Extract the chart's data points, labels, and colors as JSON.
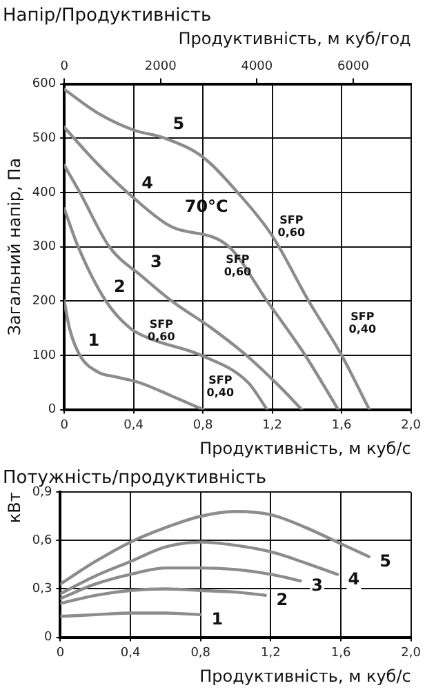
{
  "chart_data": [
    {
      "type": "line",
      "title": "Напір/Продуктивність",
      "xlabel": "Продуктивність, м куб/с",
      "ylabel": "Загальний напір, Па",
      "x2label": "Продуктивність, м куб/год",
      "xlim": [
        0,
        2.0
      ],
      "xticks": [
        0,
        {
          "value": 0.4,
          "label": "0,4"
        },
        {
          "value": 0.8,
          "label": "0,8"
        },
        {
          "value": 1.2,
          "label": "1,2"
        },
        {
          "value": 1.6,
          "label": "1,6"
        },
        {
          "value": 2.0,
          "label": "2,0"
        }
      ],
      "x2lim": [
        0,
        7200
      ],
      "x2ticks": [
        0,
        2000,
        4000,
        6000
      ],
      "ylim": [
        0,
        600
      ],
      "yticks": [
        0,
        100,
        200,
        300,
        400,
        500,
        600
      ],
      "grid": true,
      "legend": false,
      "marker": "none",
      "line_style": "solid",
      "series": [
        {
          "name": "1",
          "color": "#8c8c8c",
          "x": [
            0,
            0.03,
            0.09,
            0.19,
            0.3,
            0.43,
            0.62,
            0.8
          ],
          "values": [
            200,
            150,
            100,
            70,
            60,
            50,
            25,
            0
          ]
        },
        {
          "name": "2",
          "color": "#8c8c8c",
          "x": [
            0,
            0.08,
            0.24,
            0.38,
            0.5,
            0.79,
            1.06,
            1.17
          ],
          "values": [
            370,
            300,
            200,
            150,
            130,
            100,
            50,
            0
          ]
        },
        {
          "name": "3",
          "color": "#8c8c8c",
          "x": [
            0,
            0.09,
            0.26,
            0.45,
            0.62,
            0.85,
            1.05,
            1.25,
            1.37
          ],
          "values": [
            450,
            400,
            300,
            245,
            200,
            150,
            100,
            40,
            0
          ]
        },
        {
          "name": "4",
          "color": "#8c8c8c",
          "x": [
            0,
            0.2,
            0.4,
            0.6,
            0.95,
            1.17,
            1.39,
            1.58
          ],
          "values": [
            520,
            450,
            390,
            340,
            300,
            200,
            100,
            0
          ]
        },
        {
          "name": "5",
          "color": "#8c8c8c",
          "x": [
            0,
            0.2,
            0.4,
            0.58,
            0.8,
            1.0,
            1.2,
            1.41,
            1.6,
            1.76
          ],
          "values": [
            590,
            545,
            515,
            500,
            465,
            400,
            320,
            200,
            100,
            0
          ]
        }
      ],
      "annotations": [
        "70°C",
        "SFP\n0,60",
        "SFP\n0,60",
        "SFP\n0,40",
        "SFP\n0,60",
        "SFP\n0,40"
      ]
    },
    {
      "type": "line",
      "title": "Потужність/продуктивність",
      "xlabel": "Продуктивність, м куб/с",
      "ylabel": "кВт",
      "xlim": [
        0,
        2.0
      ],
      "xticks": [
        0,
        {
          "value": 0.4,
          "label": "0,4"
        },
        {
          "value": 0.8,
          "label": "0,8"
        },
        {
          "value": 1.2,
          "label": "1,2"
        },
        {
          "value": 1.6,
          "label": "1,6"
        },
        {
          "value": 2.0,
          "label": "2,0"
        }
      ],
      "ylim": [
        0,
        0.9
      ],
      "yticks": [
        0,
        {
          "value": 0.3,
          "label": "0,3"
        },
        {
          "value": 0.6,
          "label": "0,6"
        },
        {
          "value": 0.9,
          "label": "0,9"
        }
      ],
      "grid": true,
      "legend": false,
      "marker": "none",
      "line_style": "solid",
      "series": [
        {
          "name": "1",
          "color": "#8c8c8c",
          "x": [
            0,
            0.2,
            0.4,
            0.6,
            0.8
          ],
          "values": [
            0.13,
            0.14,
            0.15,
            0.15,
            0.14
          ]
        },
        {
          "name": "2",
          "color": "#8c8c8c",
          "x": [
            0,
            0.2,
            0.4,
            0.6,
            0.8,
            1.0,
            1.17
          ],
          "values": [
            0.21,
            0.26,
            0.29,
            0.3,
            0.29,
            0.28,
            0.26
          ]
        },
        {
          "name": "3",
          "color": "#8c8c8c",
          "x": [
            0,
            0.2,
            0.4,
            0.6,
            0.8,
            1.0,
            1.2,
            1.37
          ],
          "values": [
            0.24,
            0.33,
            0.39,
            0.43,
            0.43,
            0.42,
            0.39,
            0.35
          ]
        },
        {
          "name": "4",
          "color": "#8c8c8c",
          "x": [
            0,
            0.2,
            0.4,
            0.6,
            0.8,
            1.0,
            1.2,
            1.4,
            1.58
          ],
          "values": [
            0.27,
            0.38,
            0.47,
            0.56,
            0.59,
            0.57,
            0.53,
            0.46,
            0.39
          ]
        },
        {
          "name": "5",
          "color": "#8c8c8c",
          "x": [
            0,
            0.2,
            0.4,
            0.6,
            0.8,
            1.0,
            1.2,
            1.4,
            1.6,
            1.76
          ],
          "values": [
            0.33,
            0.47,
            0.59,
            0.68,
            0.75,
            0.78,
            0.76,
            0.68,
            0.58,
            0.5
          ]
        }
      ]
    }
  ]
}
